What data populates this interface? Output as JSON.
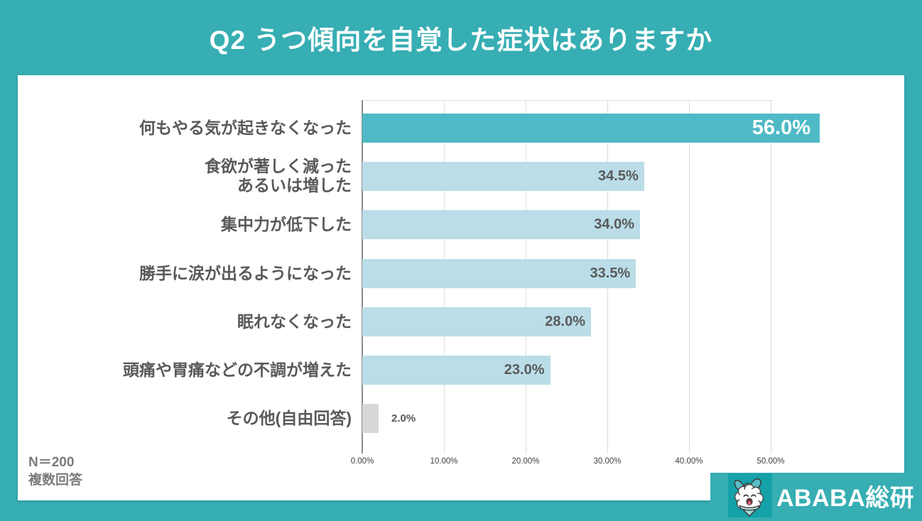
{
  "title": "Q2 うつ傾向を自覚した症状はありますか",
  "chart_data": {
    "type": "bar",
    "orientation": "horizontal",
    "title": "Q2 うつ傾向を自覚した症状はありますか",
    "categories": [
      "何もやる気が起きなくなった",
      "食欲が著しく減った\nあるいは増した",
      "集中力が低下した",
      "勝手に涙が出るようになった",
      "眠れなくなった",
      "頭痛や胃痛などの不調が増えた",
      "その他(自由回答)"
    ],
    "values": [
      56.0,
      34.5,
      34.0,
      33.5,
      28.0,
      23.0,
      2.0
    ],
    "value_labels": [
      "56.0%",
      "34.5%",
      "34.0%",
      "33.5%",
      "28.0%",
      "23.0%",
      "2.0%"
    ],
    "value_label_styles": [
      "inside-white-large",
      "inside-gray",
      "inside-gray",
      "inside-gray",
      "inside-gray",
      "inside-gray",
      "outside-gray"
    ],
    "bar_colors": [
      "#4FBAC6",
      "#BADDE8",
      "#BADDE8",
      "#BADDE8",
      "#BADDE8",
      "#BADDE8",
      "#D7D7D7"
    ],
    "x_tick_labels": [
      "0.00%",
      "10.00%",
      "20.00%",
      "30.00%",
      "40.00%",
      "50.00%"
    ],
    "x_tick_values": [
      0,
      10,
      20,
      30,
      40,
      50
    ],
    "xlim": [
      0,
      60
    ],
    "grid": "vertical",
    "legend": "none"
  },
  "footnote": {
    "line1": "N＝200",
    "line2": "複数回答"
  },
  "logo": {
    "text": "ABABA総研",
    "icon": "alpaca-mascot-icon"
  },
  "colors": {
    "background_teal": "#36AEB3",
    "highlight_bar": "#4FBAC6",
    "regular_bar": "#BADDE8",
    "other_bar": "#D7D7D7",
    "label_gray": "#595959",
    "footnote_gray": "#7C7C7C",
    "gridline": "#DCDCDC",
    "axis_line": "#8C8C8C",
    "logo_square": "#14A2A8",
    "title_text": "#FFFFFF"
  }
}
